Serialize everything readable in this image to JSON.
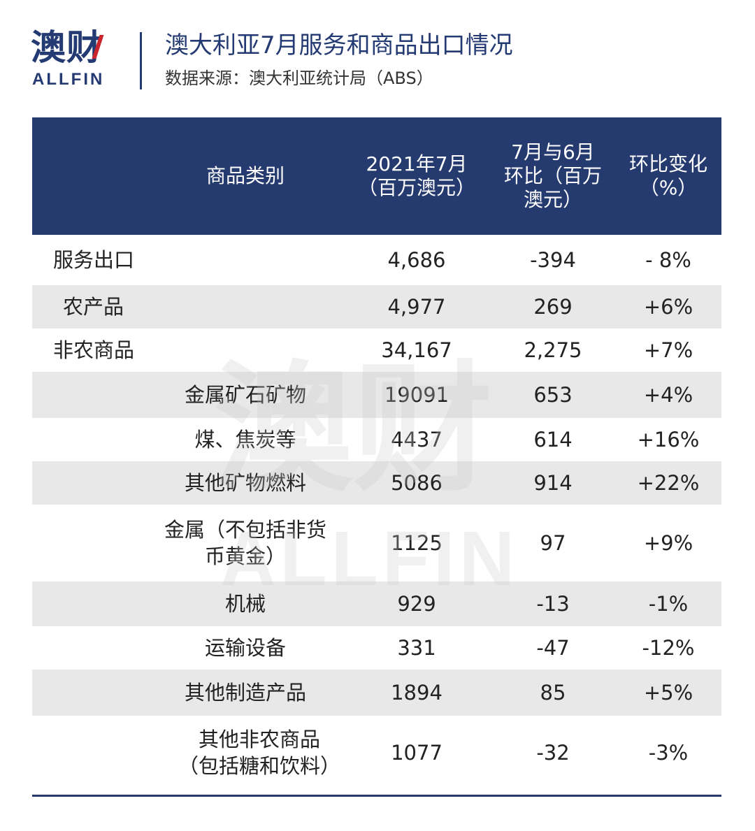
{
  "header": {
    "logo_cn": "澳财",
    "logo_en": "ALLFIN",
    "title": "澳大利亚7月服务和商品出口情况",
    "subtitle": "数据来源：澳大利亚统计局（ABS）"
  },
  "table": {
    "columns": [
      "商品类别",
      "2021年7月\n（百万澳元）",
      "7月与6月\n环比（百万\n澳元）",
      "环比变化\n（%）"
    ],
    "rows": [
      {
        "name": "服务出口",
        "value": "4,686",
        "change": "-394",
        "pct": "- 8%"
      },
      {
        "name": "农产品",
        "value": "4,977",
        "change": "269",
        "pct": "+6%"
      },
      {
        "name": "非农商品",
        "value": "34,167",
        "change": "2,275",
        "pct": "+7%"
      },
      {
        "name": "金属矿石矿物",
        "value": "19091",
        "change": "653",
        "pct": "+4%"
      },
      {
        "name": "煤、焦炭等",
        "value": "4437",
        "change": "614",
        "pct": "+16%"
      },
      {
        "name": "其他矿物燃料",
        "value": "5086",
        "change": "914",
        "pct": "+22%"
      },
      {
        "name": "金属（不包括非货\n币黄金）",
        "value": "1125",
        "change": "97",
        "pct": "+9%"
      },
      {
        "name": "机械",
        "value": "929",
        "change": "-13",
        "pct": "-1%"
      },
      {
        "name": "运输设备",
        "value": "331",
        "change": "-47",
        "pct": "-12%"
      },
      {
        "name": "其他制造产品",
        "value": "1894",
        "change": "85",
        "pct": "+5%"
      },
      {
        "name": "其他非农商品\n（包括糖和饮料）",
        "value": "1077",
        "change": "-32",
        "pct": "-3%"
      }
    ]
  },
  "watermark": {
    "cn": "澳财",
    "en": "ALLFIN"
  },
  "colors": {
    "header_bg": "#253a6e",
    "brand": "#243a72",
    "accent": "#c9252c",
    "row_shade": "#e8e8e8"
  }
}
